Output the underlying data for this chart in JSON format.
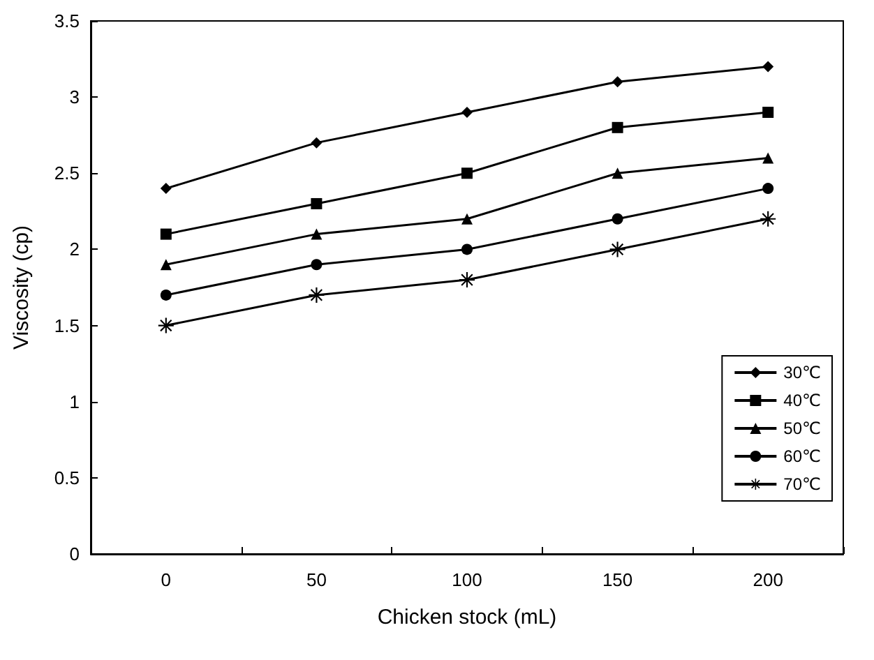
{
  "chart_data": {
    "type": "line",
    "xlabel": "Chicken stock (mL)",
    "ylabel": "Viscosity (cp)",
    "categories": [
      "0",
      "50",
      "100",
      "150",
      "200"
    ],
    "series": [
      {
        "name": "30℃",
        "color": "#000000",
        "marker": "diamond",
        "values": [
          2.4,
          2.7,
          2.9,
          3.1,
          3.2
        ]
      },
      {
        "name": "40℃",
        "color": "#000000",
        "marker": "square",
        "values": [
          2.1,
          2.3,
          2.5,
          2.8,
          2.9
        ]
      },
      {
        "name": "50℃",
        "color": "#000000",
        "marker": "triangle",
        "values": [
          1.9,
          2.1,
          2.2,
          2.5,
          2.6
        ]
      },
      {
        "name": "60℃",
        "color": "#000000",
        "marker": "circle",
        "values": [
          1.7,
          1.9,
          2.0,
          2.2,
          2.4
        ]
      },
      {
        "name": "70℃",
        "color": "#000000",
        "marker": "star",
        "values": [
          1.5,
          1.7,
          1.8,
          2.0,
          2.2
        ]
      }
    ],
    "ylim": [
      0,
      3.5
    ],
    "yticks": [
      0,
      0.5,
      1,
      1.5,
      2,
      2.5,
      3,
      3.5
    ],
    "grid": false,
    "legend": "right",
    "line_style": "solid"
  }
}
